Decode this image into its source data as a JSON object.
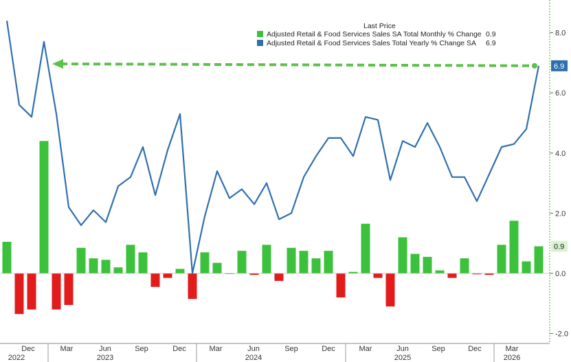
{
  "chart_data": {
    "type": "bar+line",
    "legend": {
      "title": "Last Price",
      "placement": "top-right",
      "entries": [
        {
          "label": "Adjusted Retail & Food Services Sales SA Total Monthly % Change",
          "value": "0.9",
          "color": "#3cc13c"
        },
        {
          "label": "Adjusted Retail & Food Services Sales Total Yearly % Change SA",
          "value": "6.9",
          "color": "#2f6fae"
        }
      ]
    },
    "x_month_labels": [
      "Dec",
      "Mar",
      "Jun",
      "Sep",
      "Dec",
      "Mar",
      "Jun",
      "Sep",
      "Dec",
      "Mar",
      "Jun",
      "Sep",
      "Dec",
      "Mar"
    ],
    "x_year_labels": [
      "2022",
      "2023",
      "2024",
      "2025",
      "2026"
    ],
    "y_ticks": [
      "8.0",
      "6.0",
      "4.0",
      "2.0",
      "0.0",
      "-2.0"
    ],
    "ylim": [
      -2.2,
      8.9
    ],
    "grid": false,
    "series": [
      {
        "name": "Adjusted Retail & Food Services Sales SA Total Monthly % Change",
        "kind": "bar",
        "positive_color": "#3cc13c",
        "negative_color": "#e21b1b",
        "values": [
          1.05,
          -1.35,
          -1.2,
          4.4,
          -1.2,
          -1.05,
          0.85,
          0.5,
          0.45,
          0.2,
          0.95,
          0.7,
          -0.45,
          -0.15,
          0.15,
          -0.85,
          0.7,
          0.35,
          0.0,
          0.75,
          -0.05,
          0.95,
          -0.25,
          0.85,
          0.75,
          0.5,
          0.75,
          -0.8,
          0.05,
          1.65,
          -0.15,
          -1.1,
          1.2,
          0.65,
          0.55,
          0.1,
          -0.15,
          0.5,
          -0.03,
          -0.05,
          0.95,
          1.75,
          0.4,
          0.9
        ]
      },
      {
        "name": "Adjusted Retail & Food Services Sales Total Yearly % Change SA",
        "kind": "line",
        "color": "#2f6fae",
        "values": [
          8.4,
          5.6,
          5.2,
          7.7,
          5.3,
          2.2,
          1.6,
          2.1,
          1.7,
          2.9,
          3.2,
          4.2,
          2.6,
          4.1,
          5.3,
          0.0,
          1.9,
          3.4,
          2.5,
          2.8,
          2.3,
          3.0,
          1.8,
          2.0,
          3.2,
          3.9,
          4.5,
          4.5,
          3.9,
          5.2,
          5.1,
          3.1,
          4.4,
          4.2,
          5.0,
          4.2,
          3.2,
          3.2,
          2.4,
          3.3,
          4.2,
          4.3,
          4.8,
          6.9
        ]
      }
    ],
    "last_value_badges": [
      {
        "text": "6.9",
        "value": 6.9,
        "bg": "#2f6fae",
        "fg": "#ffffff"
      },
      {
        "text": "0.9",
        "value": 0.9,
        "bg": "#d9f2d2",
        "fg": "#222222"
      }
    ],
    "annotation": {
      "kind": "dashed-arrow",
      "color": "#5cc04a",
      "value": 6.9
    }
  }
}
